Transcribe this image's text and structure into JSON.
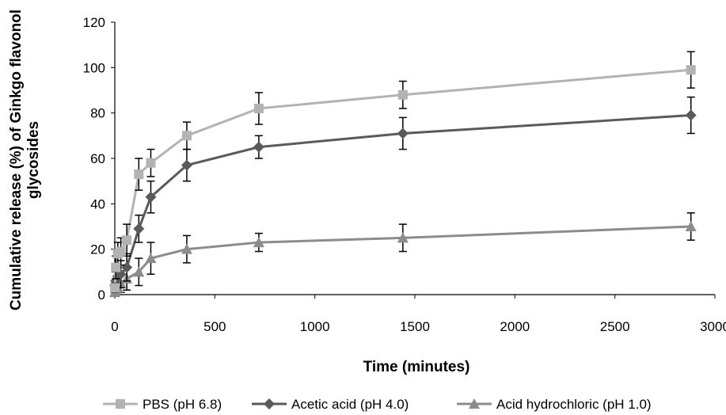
{
  "chart_data": {
    "type": "line",
    "title": "",
    "xlabel": "Time (minutes)",
    "ylabel_lines": [
      "Cumulative release (%) of Ginkgo  flavonol",
      "glycosides"
    ],
    "xlim": [
      0,
      3000
    ],
    "ylim": [
      0,
      120
    ],
    "xticks": [
      0,
      500,
      1000,
      1500,
      2000,
      2500,
      3000
    ],
    "yticks": [
      0,
      20,
      40,
      60,
      80,
      100,
      120
    ],
    "grid": false,
    "legend_position": "bottom",
    "x": [
      0,
      5,
      15,
      30,
      60,
      120,
      180,
      360,
      720,
      1440,
      2880
    ],
    "series": [
      {
        "name": "PBS (pH 6.8)",
        "marker": "square",
        "color": "#b3b3b3",
        "values": [
          3,
          12,
          18,
          19,
          24,
          53,
          58,
          70,
          82,
          88,
          99
        ],
        "errors": [
          2,
          5,
          5,
          6,
          7,
          7,
          6,
          6,
          7,
          6,
          8
        ]
      },
      {
        "name": "Acetic acid (pH 4.0)",
        "marker": "diamond",
        "color": "#5a5a5a",
        "values": [
          4,
          6,
          8,
          9,
          12,
          29,
          43,
          57,
          65,
          71,
          79
        ],
        "errors": [
          2,
          4,
          5,
          6,
          6,
          6,
          7,
          7,
          5,
          7,
          8
        ]
      },
      {
        "name": "Acid hydrochloric (pH 1.0)",
        "marker": "triangle",
        "color": "#8c8c8c",
        "values": [
          1,
          2,
          3,
          5,
          7,
          10,
          16,
          20,
          23,
          25,
          30
        ],
        "errors": [
          1,
          2,
          3,
          4,
          5,
          6,
          7,
          6,
          4,
          6,
          6
        ]
      }
    ]
  }
}
